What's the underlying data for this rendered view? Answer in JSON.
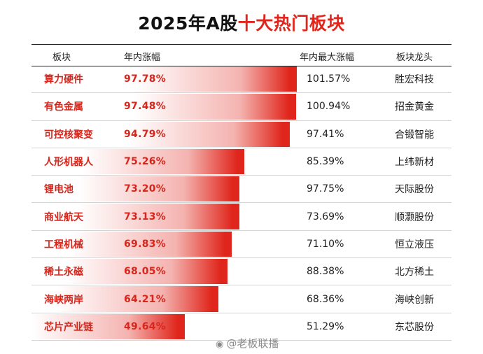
{
  "title": {
    "main": "2025年A股",
    "accent": "十大热门板块"
  },
  "header": {
    "sector": "板块",
    "ytd_gain": "年内涨幅",
    "max_gain": "年内最大涨幅",
    "leader": "板块龙头"
  },
  "colors": {
    "accent": "#e0261c",
    "bar_light": "#ffffff"
  },
  "chart_data": {
    "type": "bar",
    "categories": [
      "算力硬件",
      "有色金属",
      "可控核聚变",
      "人形机器人",
      "锂电池",
      "商业航天",
      "工程机械",
      "稀土永磁",
      "海峡两岸",
      "芯片产业链"
    ],
    "values": [
      97.78,
      97.48,
      94.79,
      75.26,
      73.2,
      73.13,
      69.83,
      68.05,
      64.21,
      49.64
    ],
    "series": [
      {
        "name": "年内涨幅",
        "values": [
          97.78,
          97.48,
          94.79,
          75.26,
          73.2,
          73.13,
          69.83,
          68.05,
          64.21,
          49.64
        ]
      }
    ]
  },
  "rows": [
    {
      "name": "算力硬件",
      "pct": "97.78%",
      "max": "101.57%",
      "lead": "胜宏科技"
    },
    {
      "name": "有色金属",
      "pct": "97.48%",
      "max": "100.94%",
      "lead": "招金黄金"
    },
    {
      "name": "可控核聚变",
      "pct": "94.79%",
      "max": "97.41%",
      "lead": "合锻智能"
    },
    {
      "name": "人形机器人",
      "pct": "75.26%",
      "max": "85.39%",
      "lead": "上纬新材"
    },
    {
      "name": "锂电池",
      "pct": "73.20%",
      "max": "97.75%",
      "lead": "天际股份"
    },
    {
      "name": "商业航天",
      "pct": "73.13%",
      "max": "73.69%",
      "lead": "顺灏股份"
    },
    {
      "name": "工程机械",
      "pct": "69.83%",
      "max": "71.10%",
      "lead": "恒立液压"
    },
    {
      "name": "稀土永磁",
      "pct": "68.05%",
      "max": "88.38%",
      "lead": "北方稀土"
    },
    {
      "name": "海峡两岸",
      "pct": "64.21%",
      "max": "68.36%",
      "lead": "海峡创新"
    },
    {
      "name": "芯片产业链",
      "pct": "49.64%",
      "max": "51.29%",
      "lead": "东芯股份"
    }
  ],
  "watermark": {
    "text": "@老板联播"
  }
}
